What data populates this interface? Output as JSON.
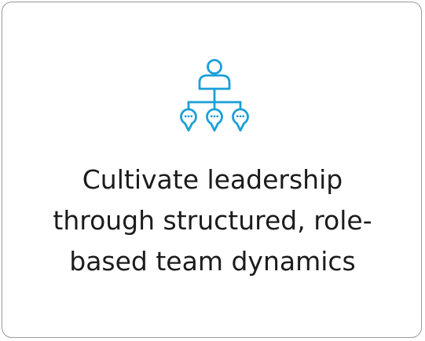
{
  "card": {
    "icon": "org-hierarchy-icon",
    "icon_color": "#1b9fd8",
    "headline_lines": [
      "Cultivate leadership",
      "through structured, role-",
      "based team dynamics"
    ]
  }
}
